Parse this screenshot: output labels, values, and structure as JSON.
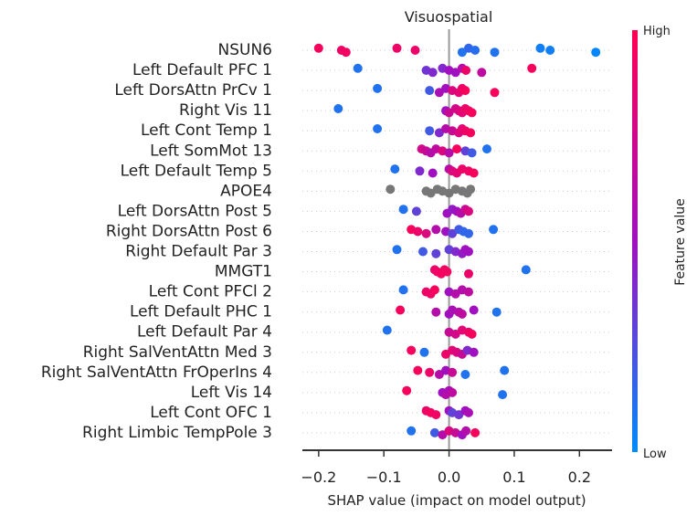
{
  "chart_data": {
    "type": "scatter",
    "title": "Visuospatial",
    "xlabel": "SHAP value (impact on model output)",
    "xlim": [
      -0.225,
      0.25
    ],
    "xticks": [
      -0.2,
      -0.1,
      0.0,
      0.1,
      0.2
    ],
    "xtick_labels": [
      "−0.2",
      "−0.1",
      "0.0",
      "0.1",
      "0.2"
    ],
    "colorbar": {
      "title": "Feature value",
      "high_label": "High",
      "low_label": "Low",
      "low_color": "#008bfb",
      "mid_color": "#a010c0",
      "high_color": "#ff0052"
    },
    "missing_color": "#777777",
    "features": [
      {
        "name": "NSUN6",
        "points": [
          [
            -0.2,
            0.95
          ],
          [
            -0.165,
            0.92
          ],
          [
            -0.158,
            0.93
          ],
          [
            -0.08,
            0.9
          ],
          [
            -0.052,
            0.9
          ],
          [
            0.02,
            0.1
          ],
          [
            0.03,
            0.15
          ],
          [
            0.04,
            0.12
          ],
          [
            0.07,
            0.1
          ],
          [
            0.14,
            0.05
          ],
          [
            0.155,
            0.05
          ],
          [
            0.225,
            0.02
          ]
        ]
      },
      {
        "name": "Left Default PFC 1",
        "points": [
          [
            -0.14,
            0.1
          ],
          [
            -0.035,
            0.35
          ],
          [
            -0.025,
            0.4
          ],
          [
            -0.01,
            0.4
          ],
          [
            0.0,
            0.5
          ],
          [
            0.01,
            0.5
          ],
          [
            0.02,
            0.6
          ],
          [
            0.026,
            0.9
          ],
          [
            0.05,
            0.65
          ],
          [
            0.127,
            0.95
          ]
        ]
      },
      {
        "name": "Left DorsAttn PrCv 1",
        "points": [
          [
            -0.11,
            0.1
          ],
          [
            -0.03,
            0.2
          ],
          [
            -0.015,
            0.55
          ],
          [
            -0.005,
            0.5
          ],
          [
            0.005,
            0.8
          ],
          [
            0.015,
            0.85
          ],
          [
            0.02,
            0.9
          ],
          [
            0.025,
            0.95
          ],
          [
            0.07,
            0.95
          ]
        ]
      },
      {
        "name": "Right Vis 11",
        "points": [
          [
            -0.17,
            0.1
          ],
          [
            -0.005,
            0.5
          ],
          [
            0.0,
            0.7
          ],
          [
            0.01,
            0.75
          ],
          [
            0.015,
            0.8
          ],
          [
            0.02,
            0.85
          ],
          [
            0.025,
            0.9
          ],
          [
            0.03,
            0.92
          ],
          [
            0.035,
            0.95
          ]
        ]
      },
      {
        "name": "Left Cont Temp 1",
        "points": [
          [
            -0.11,
            0.1
          ],
          [
            -0.03,
            0.2
          ],
          [
            -0.015,
            0.4
          ],
          [
            -0.005,
            0.6
          ],
          [
            0.005,
            0.7
          ],
          [
            0.015,
            0.8
          ],
          [
            0.02,
            0.85
          ],
          [
            0.025,
            0.9
          ],
          [
            0.033,
            0.95
          ]
        ]
      },
      {
        "name": "Left SomMot 13",
        "points": [
          [
            -0.042,
            0.75
          ],
          [
            -0.035,
            0.7
          ],
          [
            -0.028,
            0.6
          ],
          [
            -0.02,
            0.65
          ],
          [
            -0.01,
            0.8
          ],
          [
            0.0,
            0.6
          ],
          [
            0.012,
            0.95
          ],
          [
            0.025,
            0.3
          ],
          [
            0.035,
            0.2
          ],
          [
            0.058,
            0.1
          ]
        ]
      },
      {
        "name": "Left Default Temp 5",
        "points": [
          [
            -0.083,
            0.1
          ],
          [
            -0.045,
            0.4
          ],
          [
            -0.025,
            0.5
          ],
          [
            0.0,
            0.6
          ],
          [
            0.005,
            0.8
          ],
          [
            0.012,
            0.85
          ],
          [
            0.02,
            0.9
          ],
          [
            0.03,
            0.92
          ],
          [
            0.038,
            0.95
          ]
        ]
      },
      {
        "name": "APOE4",
        "missing": true,
        "points": [
          [
            -0.09,
            null
          ],
          [
            -0.035,
            null
          ],
          [
            -0.028,
            null
          ],
          [
            -0.018,
            null
          ],
          [
            -0.01,
            null
          ],
          [
            0.0,
            null
          ],
          [
            0.01,
            null
          ],
          [
            0.02,
            null
          ],
          [
            0.028,
            null
          ],
          [
            0.033,
            null
          ]
        ]
      },
      {
        "name": "Left DorsAttn Post 5",
        "points": [
          [
            -0.07,
            0.1
          ],
          [
            -0.05,
            0.3
          ],
          [
            -0.003,
            0.5
          ],
          [
            0.005,
            0.45
          ],
          [
            0.012,
            0.5
          ],
          [
            0.018,
            0.6
          ],
          [
            0.025,
            0.7
          ],
          [
            0.03,
            0.8
          ]
        ]
      },
      {
        "name": "Right DorsAttn Post 6",
        "points": [
          [
            -0.058,
            0.95
          ],
          [
            -0.048,
            0.9
          ],
          [
            -0.035,
            0.8
          ],
          [
            -0.02,
            0.6
          ],
          [
            -0.005,
            0.5
          ],
          [
            0.005,
            0.3
          ],
          [
            0.015,
            0.2
          ],
          [
            0.022,
            0.15
          ],
          [
            0.03,
            0.15
          ],
          [
            0.068,
            0.1
          ]
        ]
      },
      {
        "name": "Right Default Par 3",
        "points": [
          [
            -0.08,
            0.1
          ],
          [
            -0.04,
            0.2
          ],
          [
            -0.02,
            0.3
          ],
          [
            0.0,
            0.3
          ],
          [
            0.01,
            0.4
          ],
          [
            0.02,
            0.45
          ],
          [
            0.025,
            0.5
          ],
          [
            0.03,
            0.5
          ]
        ]
      },
      {
        "name": "MMGT1",
        "points": [
          [
            -0.022,
            0.9
          ],
          [
            -0.018,
            0.92
          ],
          [
            -0.012,
            0.94
          ],
          [
            -0.007,
            0.95
          ],
          [
            -0.003,
            0.93
          ],
          [
            0.03,
            0.9
          ],
          [
            0.118,
            0.1
          ]
        ]
      },
      {
        "name": "Left Cont PFCl 2",
        "points": [
          [
            -0.07,
            0.1
          ],
          [
            -0.035,
            0.9
          ],
          [
            -0.028,
            0.92
          ],
          [
            -0.022,
            0.95
          ],
          [
            0.0,
            0.5
          ],
          [
            0.01,
            0.6
          ],
          [
            0.02,
            0.6
          ],
          [
            0.03,
            0.65
          ]
        ]
      },
      {
        "name": "Left Default PHC 1",
        "points": [
          [
            -0.075,
            0.95
          ],
          [
            -0.02,
            0.6
          ],
          [
            0.0,
            0.5
          ],
          [
            0.005,
            0.55
          ],
          [
            0.015,
            0.6
          ],
          [
            0.02,
            0.65
          ],
          [
            0.038,
            0.5
          ],
          [
            0.073,
            0.1
          ]
        ]
      },
      {
        "name": "Left Default Par 4",
        "points": [
          [
            -0.095,
            0.1
          ],
          [
            0.0,
            0.7
          ],
          [
            0.01,
            0.75
          ],
          [
            0.02,
            0.85
          ],
          [
            0.03,
            0.9
          ],
          [
            0.035,
            0.95
          ]
        ]
      },
      {
        "name": "Right SalVentAttn Med 3",
        "points": [
          [
            -0.058,
            0.95
          ],
          [
            -0.038,
            0.1
          ],
          [
            -0.005,
            0.9
          ],
          [
            0.005,
            0.85
          ],
          [
            0.012,
            0.8
          ],
          [
            0.02,
            0.7
          ],
          [
            0.028,
            0.4
          ],
          [
            0.038,
            0.5
          ]
        ]
      },
      {
        "name": "Right SalVentAttn FrOperIns 4",
        "points": [
          [
            -0.048,
            0.95
          ],
          [
            -0.03,
            0.9
          ],
          [
            -0.015,
            0.6
          ],
          [
            -0.005,
            0.5
          ],
          [
            0.005,
            0.7
          ],
          [
            0.025,
            0.1
          ],
          [
            0.085,
            0.1
          ]
        ]
      },
      {
        "name": "Left Vis 14",
        "points": [
          [
            -0.065,
            0.95
          ],
          [
            -0.01,
            0.5
          ],
          [
            -0.005,
            0.6
          ],
          [
            0.0,
            0.55
          ],
          [
            0.005,
            0.65
          ],
          [
            0.082,
            0.1
          ]
        ]
      },
      {
        "name": "Left Cont OFC 1",
        "points": [
          [
            -0.035,
            0.9
          ],
          [
            -0.028,
            0.95
          ],
          [
            -0.02,
            0.92
          ],
          [
            0.0,
            0.5
          ],
          [
            0.005,
            0.3
          ],
          [
            0.015,
            0.35
          ],
          [
            0.025,
            0.5
          ],
          [
            0.03,
            0.55
          ]
        ]
      },
      {
        "name": "Right Limbic TempPole 3",
        "points": [
          [
            -0.058,
            0.1
          ],
          [
            -0.022,
            0.2
          ],
          [
            -0.01,
            0.6
          ],
          [
            0.0,
            0.8
          ],
          [
            0.01,
            0.7
          ],
          [
            0.02,
            0.5
          ],
          [
            0.026,
            0.6
          ],
          [
            0.04,
            0.95
          ]
        ]
      }
    ]
  }
}
